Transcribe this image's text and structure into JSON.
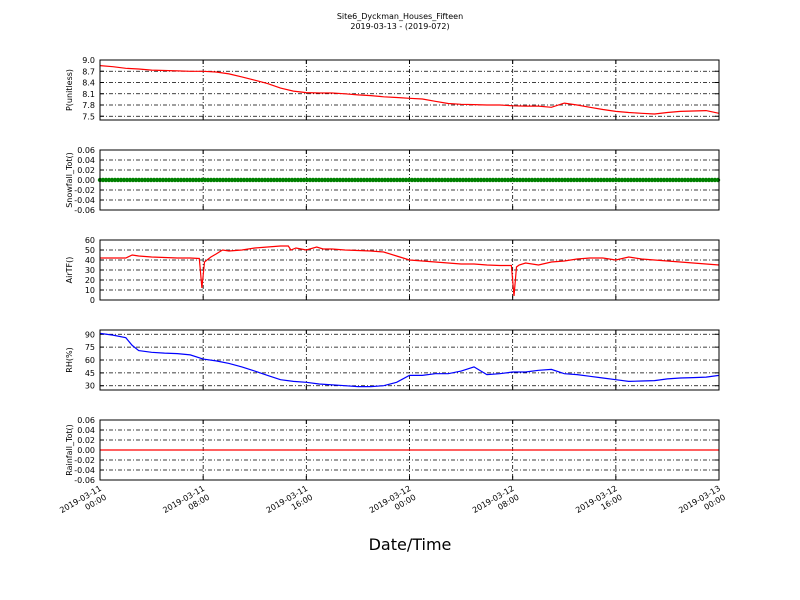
{
  "chart_data": {
    "type": "line",
    "title": "Site6_Dyckman_Houses_Fifteen",
    "subtitle": "2019-03-13 - (2019-072)",
    "xlabel": "Date/Time",
    "x_range": [
      "2019-03-11 00:00",
      "2019-03-13 00:00"
    ],
    "x_ticks": [
      {
        "line1": "2019-03-11",
        "line2": "00:00"
      },
      {
        "line1": "2019-03-11",
        "line2": "08:00"
      },
      {
        "line1": "2019-03-11",
        "line2": "16:00"
      },
      {
        "line1": "2019-03-12",
        "line2": "00:00"
      },
      {
        "line1": "2019-03-12",
        "line2": "08:00"
      },
      {
        "line1": "2019-03-12",
        "line2": "16:00"
      },
      {
        "line1": "2019-03-13",
        "line2": "00:00"
      }
    ],
    "grid": true,
    "panels": [
      {
        "ylabel": "P(unitless)",
        "ylim": [
          7.4,
          9.0
        ],
        "yticks": [
          "7.5",
          "7.8",
          "8.1",
          "8.4",
          "8.7",
          "9.0"
        ],
        "color": "#ff0000",
        "x_hours": [
          0,
          1,
          2,
          3,
          4,
          5,
          6,
          7,
          8,
          9,
          10,
          11,
          12,
          13,
          14,
          15,
          16,
          17,
          18,
          19,
          20,
          21,
          22,
          23,
          24,
          25,
          26,
          27,
          28,
          29,
          30,
          31,
          32,
          33,
          34,
          35,
          36,
          37,
          38,
          39,
          40,
          41,
          42,
          43,
          44,
          45,
          46,
          47,
          48
        ],
        "values": [
          8.85,
          8.82,
          8.78,
          8.76,
          8.73,
          8.72,
          8.71,
          8.7,
          8.7,
          8.68,
          8.63,
          8.55,
          8.46,
          8.37,
          8.25,
          8.17,
          8.13,
          8.12,
          8.12,
          8.1,
          8.07,
          8.05,
          8.02,
          8.0,
          7.98,
          7.96,
          7.9,
          7.84,
          7.82,
          7.81,
          7.8,
          7.8,
          7.78,
          7.77,
          7.77,
          7.74,
          7.85,
          7.8,
          7.74,
          7.68,
          7.63,
          7.6,
          7.58,
          7.56,
          7.6,
          7.63,
          7.64,
          7.65,
          7.58
        ]
      },
      {
        "ylabel": "Snowfall_Tot()",
        "ylim": [
          -0.06,
          0.06
        ],
        "yticks": [
          "-0.06",
          "-0.04",
          "-0.02",
          "0.00",
          "0.02",
          "0.04",
          "0.06"
        ],
        "color": "#008000",
        "marker": "dots",
        "x_hours": [
          0,
          48
        ],
        "values": [
          0,
          0
        ]
      },
      {
        "ylabel": "AirTF()",
        "ylim": [
          0,
          60
        ],
        "yticks": [
          "0",
          "10",
          "20",
          "30",
          "40",
          "50",
          "60"
        ],
        "color": "#ff0000",
        "x_hours": [
          0,
          1,
          2,
          2.5,
          3,
          4,
          5,
          6,
          7,
          7.7,
          7.9,
          8.1,
          8.3,
          8.6,
          9,
          9.5,
          10,
          11,
          12,
          13,
          14,
          14.6,
          14.8,
          15.2,
          16,
          16.8,
          17.3,
          18,
          19,
          20,
          21,
          22,
          23,
          24,
          25,
          26,
          27,
          28,
          29,
          30,
          31,
          31.9,
          32.1,
          32.3,
          32.5,
          33,
          34,
          35,
          36,
          37,
          38,
          39,
          40,
          41,
          42,
          43,
          44,
          45,
          46,
          47,
          48
        ],
        "values": [
          42,
          42,
          42,
          45,
          44,
          43,
          42.5,
          42,
          42,
          41.5,
          12,
          38,
          40,
          43,
          46,
          50,
          49,
          50,
          52,
          53,
          54,
          54,
          50,
          52,
          50,
          53,
          51,
          51,
          50,
          49.5,
          49,
          48,
          44,
          40,
          39,
          38,
          37,
          36,
          36,
          35,
          34.5,
          34.5,
          4,
          33,
          35,
          37,
          35,
          38,
          39,
          41,
          42,
          42,
          40,
          43,
          41,
          40,
          39,
          38,
          37,
          36,
          35
        ]
      },
      {
        "ylabel": "RH(%)",
        "ylim": [
          25,
          95
        ],
        "yticks": [
          "30",
          "45",
          "60",
          "75",
          "90"
        ],
        "color": "#0000ff",
        "x_hours": [
          0,
          1,
          2,
          2.5,
          3,
          4,
          5,
          6,
          7,
          8,
          9,
          10,
          11,
          12,
          13,
          14,
          15,
          16,
          17,
          18,
          19,
          20,
          21,
          22,
          23,
          24,
          25,
          26,
          27,
          28,
          29,
          30,
          31,
          32,
          33,
          34,
          35,
          36,
          37,
          38,
          39,
          40,
          41,
          42,
          43,
          44,
          45,
          46,
          47,
          48
        ],
        "values": [
          91,
          89,
          86,
          77,
          71,
          69,
          68,
          67.5,
          66,
          61,
          59,
          56,
          52,
          47,
          42,
          37,
          35,
          34,
          32,
          31,
          30,
          29,
          29,
          30,
          34,
          42,
          42,
          44,
          44,
          47,
          52,
          43,
          44,
          46,
          46,
          48,
          49,
          44,
          43,
          41,
          39,
          37,
          35,
          35.5,
          36,
          38,
          39,
          39.5,
          40,
          42
        ]
      },
      {
        "ylabel": "Rainfall_Tot()",
        "ylim": [
          -0.06,
          0.06
        ],
        "yticks": [
          "-0.06",
          "-0.04",
          "-0.02",
          "0.00",
          "0.02",
          "0.04",
          "0.06"
        ],
        "color": "#ff0000",
        "x_hours": [
          0,
          48
        ],
        "values": [
          0,
          0
        ]
      }
    ]
  }
}
